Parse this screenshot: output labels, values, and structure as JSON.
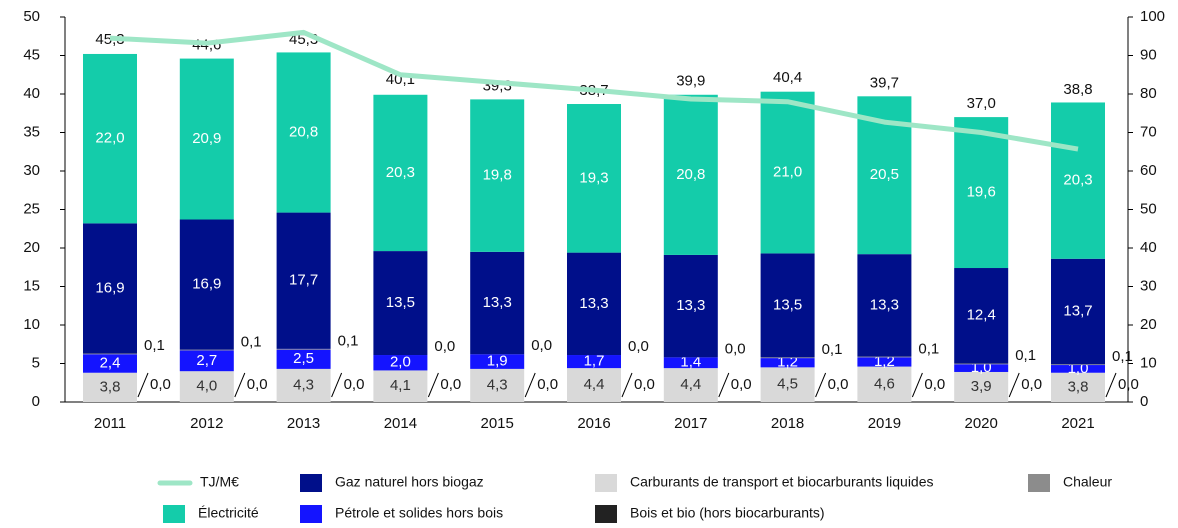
{
  "chart_data": {
    "type": "bar",
    "categories": [
      "2011",
      "2012",
      "2013",
      "2014",
      "2015",
      "2016",
      "2017",
      "2018",
      "2019",
      "2020",
      "2021"
    ],
    "series": [
      {
        "name": "Carburants de transport et biocarburants liquides",
        "color": "#d9d9d9",
        "values": [
          3.8,
          4.0,
          4.3,
          4.1,
          4.3,
          4.4,
          4.4,
          4.5,
          4.6,
          3.9,
          3.8
        ],
        "value_labels": [
          "3,8",
          "4,0",
          "4,3",
          "4,1",
          "4,3",
          "4,4",
          "4,4",
          "4,5",
          "4,6",
          "3,9",
          "3,8"
        ]
      },
      {
        "name": "Bois et bio (hors biocarburants)",
        "color": "#222222",
        "values": [
          0.0,
          0.0,
          0.0,
          0.0,
          0.0,
          0.0,
          0.0,
          0.0,
          0.0,
          0.0,
          0.0
        ],
        "value_labels": [
          "0,0",
          "0,0",
          "0,0",
          "0,0",
          "0,0",
          "0,0",
          "0,0",
          "0,0",
          "0,0",
          "0,0",
          "0,0"
        ]
      },
      {
        "name": "Pétrole et solides hors bois",
        "color": "#1414ff",
        "values": [
          2.4,
          2.7,
          2.5,
          2.0,
          1.9,
          1.7,
          1.4,
          1.2,
          1.2,
          1.0,
          1.0
        ],
        "value_labels": [
          "2,4",
          "2,7",
          "2,5",
          "2,0",
          "1,9",
          "1,7",
          "1,4",
          "1,2",
          "1,2",
          "1,0",
          "1,0"
        ]
      },
      {
        "name": "Chaleur",
        "color": "#8c8c8c",
        "values": [
          0.1,
          0.1,
          0.1,
          0.0,
          0.0,
          0.0,
          0.0,
          0.1,
          0.1,
          0.1,
          0.1
        ],
        "value_labels": [
          "0,1",
          "0,1",
          "0,1",
          "0,0",
          "0,0",
          "0,0",
          "0,0",
          "0,1",
          "0,1",
          "0,1",
          "0,1"
        ]
      },
      {
        "name": "Gaz naturel hors biogaz",
        "color": "#000f8a",
        "values": [
          16.9,
          16.9,
          17.7,
          13.5,
          13.3,
          13.3,
          13.3,
          13.5,
          13.3,
          12.4,
          13.7
        ],
        "value_labels": [
          "16,9",
          "16,9",
          "17,7",
          "13,5",
          "13,3",
          "13,3",
          "13,3",
          "13,5",
          "13,3",
          "12,4",
          "13,7"
        ]
      },
      {
        "name": "Électricité",
        "color": "#14ccaa",
        "values": [
          22.0,
          20.9,
          20.8,
          20.3,
          19.8,
          19.3,
          20.8,
          21.0,
          20.5,
          19.6,
          20.3
        ],
        "value_labels": [
          "22,0",
          "20,9",
          "20,8",
          "20,3",
          "19,8",
          "19,3",
          "20,8",
          "21,0",
          "20,5",
          "19,6",
          "20,3"
        ]
      },
      {
        "name": "TJ/M€",
        "color": "#9ee6c6",
        "type": "line",
        "axis": "y2",
        "values": [
          94.5,
          93.2,
          96,
          85,
          83,
          81,
          78.7,
          78,
          72.7,
          70,
          65.7
        ]
      }
    ],
    "totals": {
      "values": [
        45.3,
        44.6,
        45.3,
        40.1,
        39.3,
        38.7,
        39.9,
        40.4,
        39.7,
        37.0,
        38.8
      ],
      "value_labels": [
        "45,3",
        "44,6",
        "45,3",
        "40,1",
        "39,3",
        "38,7",
        "39,9",
        "40,4",
        "39,7",
        "37,0",
        "38,8"
      ]
    },
    "ylim": [
      0,
      50
    ],
    "yticks": [
      0,
      5,
      10,
      15,
      20,
      25,
      30,
      35,
      40,
      45,
      50
    ],
    "y2lim": [
      0,
      100
    ],
    "y2ticks": [
      0,
      10,
      20,
      30,
      40,
      50,
      60,
      70,
      80,
      90,
      100
    ],
    "grid": false,
    "legend": "bottom"
  }
}
